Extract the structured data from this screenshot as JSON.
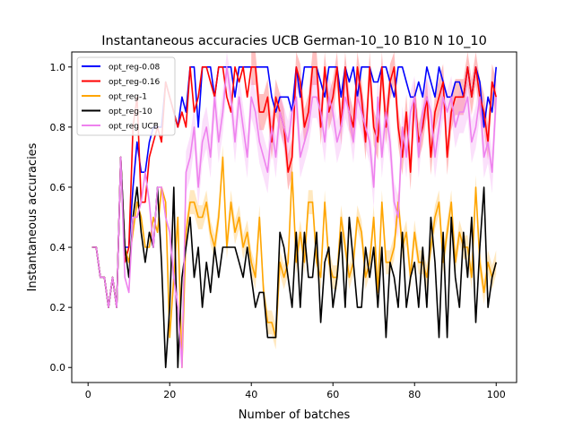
{
  "chart_data": {
    "type": "line",
    "title": "Instantaneous accuracies UCB German-10_10 B10 N 10_10",
    "xlabel": "Number of batches",
    "ylabel": "Instantaneous accuracies",
    "xlim": [
      -4,
      105
    ],
    "ylim": [
      -0.05,
      1.05
    ],
    "xticks": [
      0,
      20,
      40,
      60,
      80,
      100
    ],
    "yticks": [
      0.0,
      0.2,
      0.4,
      0.6,
      0.8,
      1.0
    ],
    "xtick_labels": [
      "0",
      "20",
      "40",
      "60",
      "80",
      "100"
    ],
    "ytick_labels": [
      "0.0",
      "0.2",
      "0.4",
      "0.6",
      "0.8",
      "1.0"
    ],
    "grid": false,
    "legend_position": "top-left",
    "x": [
      1,
      2,
      3,
      4,
      5,
      6,
      7,
      8,
      9,
      10,
      11,
      12,
      13,
      14,
      15,
      16,
      17,
      18,
      19,
      20,
      21,
      22,
      23,
      24,
      25,
      26,
      27,
      28,
      29,
      30,
      31,
      32,
      33,
      34,
      35,
      36,
      37,
      38,
      39,
      40,
      41,
      42,
      43,
      44,
      45,
      46,
      47,
      48,
      49,
      50,
      51,
      52,
      53,
      54,
      55,
      56,
      57,
      58,
      59,
      60,
      61,
      62,
      63,
      64,
      65,
      66,
      67,
      68,
      69,
      70,
      71,
      72,
      73,
      74,
      75,
      76,
      77,
      78,
      79,
      80,
      81,
      82,
      83,
      84,
      85,
      86,
      87,
      88,
      89,
      90,
      91,
      92,
      93,
      94,
      95,
      96,
      97,
      98,
      99,
      100
    ],
    "series": [
      {
        "name": "opt_reg-0.08",
        "color": "#0000ff",
        "values": [
          0.4,
          0.4,
          0.3,
          0.3,
          0.2,
          0.3,
          0.2,
          0.7,
          0.4,
          0.4,
          0.6,
          0.75,
          0.65,
          0.65,
          0.75,
          0.8,
          0.8,
          0.8,
          0.95,
          0.9,
          0.85,
          0.8,
          0.9,
          0.85,
          1.0,
          1.0,
          0.8,
          1.0,
          1.0,
          1.0,
          0.9,
          1.0,
          1.0,
          1.0,
          1.0,
          0.9,
          1.0,
          1.0,
          1.0,
          1.0,
          1.0,
          1.0,
          1.0,
          1.0,
          0.9,
          0.85,
          0.9,
          0.9,
          0.9,
          0.85,
          1.0,
          0.9,
          1.0,
          1.0,
          1.0,
          1.0,
          0.95,
          0.9,
          1.0,
          1.0,
          1.0,
          0.9,
          1.0,
          0.95,
          1.0,
          0.9,
          1.0,
          1.0,
          1.0,
          0.95,
          0.95,
          1.0,
          1.0,
          0.95,
          0.9,
          1.0,
          1.0,
          0.95,
          0.9,
          0.9,
          0.95,
          0.9,
          1.0,
          0.95,
          0.9,
          1.0,
          0.95,
          0.9,
          0.9,
          0.95,
          0.95,
          0.9,
          1.0,
          0.9,
          1.0,
          0.95,
          0.8,
          0.9,
          0.85,
          1.0
        ]
      },
      {
        "name": "opt_reg-0.16",
        "color": "#ff0000",
        "values": [
          0.4,
          0.4,
          0.3,
          0.3,
          0.2,
          0.3,
          0.2,
          0.7,
          0.35,
          0.4,
          0.8,
          0.9,
          0.55,
          0.55,
          0.7,
          0.75,
          0.8,
          0.75,
          0.95,
          0.9,
          0.85,
          0.8,
          0.85,
          0.8,
          1.0,
          0.85,
          0.9,
          1.0,
          1.0,
          0.95,
          0.9,
          1.0,
          1.0,
          0.9,
          0.85,
          1.0,
          0.95,
          1.0,
          0.9,
          1.0,
          1.0,
          0.85,
          0.85,
          0.9,
          0.75,
          0.9,
          0.85,
          0.8,
          0.65,
          0.7,
          1.0,
          0.95,
          0.8,
          0.85,
          1.0,
          1.0,
          0.8,
          1.0,
          0.85,
          0.9,
          1.0,
          0.8,
          1.0,
          0.85,
          0.8,
          1.0,
          0.9,
          0.75,
          1.0,
          0.8,
          0.75,
          1.0,
          0.8,
          0.95,
          1.0,
          0.8,
          0.7,
          0.85,
          0.65,
          0.9,
          0.75,
          0.8,
          0.9,
          0.7,
          0.85,
          0.9,
          0.95,
          0.7,
          0.85,
          0.9,
          0.9,
          0.9,
          1.0,
          0.9,
          1.0,
          0.9,
          0.85,
          0.75,
          0.95,
          0.9
        ]
      },
      {
        "name": "opt_reg-1",
        "color": "#ffa500",
        "values": [
          0.4,
          0.4,
          0.3,
          0.3,
          0.2,
          0.3,
          0.2,
          0.7,
          0.4,
          0.35,
          0.45,
          0.55,
          0.5,
          0.4,
          0.4,
          0.5,
          0.45,
          0.6,
          0.55,
          0.1,
          0.3,
          0.5,
          0.0,
          0.45,
          0.55,
          0.55,
          0.5,
          0.5,
          0.55,
          0.45,
          0.4,
          0.5,
          0.7,
          0.4,
          0.55,
          0.45,
          0.5,
          0.4,
          0.45,
          0.35,
          0.3,
          0.5,
          0.25,
          0.15,
          0.15,
          0.1,
          0.35,
          0.3,
          0.35,
          0.65,
          0.35,
          0.45,
          0.35,
          0.55,
          0.55,
          0.35,
          0.3,
          0.55,
          0.35,
          0.3,
          0.3,
          0.5,
          0.4,
          0.3,
          0.35,
          0.5,
          0.45,
          0.3,
          0.35,
          0.5,
          0.25,
          0.55,
          0.35,
          0.35,
          0.4,
          0.55,
          0.4,
          0.45,
          0.3,
          0.45,
          0.35,
          0.35,
          0.3,
          0.4,
          0.5,
          0.55,
          0.35,
          0.45,
          0.55,
          0.35,
          0.45,
          0.4,
          0.4,
          0.3,
          0.6,
          0.35,
          0.25,
          0.35,
          0.3,
          0.35
        ]
      },
      {
        "name": "opt_reg-10",
        "color": "#000000",
        "values": [
          0.4,
          0.4,
          0.3,
          0.3,
          0.2,
          0.3,
          0.2,
          0.7,
          0.4,
          0.3,
          0.5,
          0.6,
          0.45,
          0.35,
          0.45,
          0.4,
          0.6,
          0.35,
          0.0,
          0.2,
          0.6,
          0.0,
          0.3,
          0.4,
          0.5,
          0.3,
          0.4,
          0.2,
          0.35,
          0.25,
          0.4,
          0.3,
          0.4,
          0.4,
          0.4,
          0.4,
          0.35,
          0.3,
          0.4,
          0.3,
          0.2,
          0.25,
          0.25,
          0.1,
          0.1,
          0.1,
          0.45,
          0.4,
          0.3,
          0.2,
          0.45,
          0.2,
          0.45,
          0.3,
          0.3,
          0.45,
          0.15,
          0.35,
          0.4,
          0.2,
          0.3,
          0.45,
          0.2,
          0.5,
          0.35,
          0.2,
          0.2,
          0.4,
          0.3,
          0.4,
          0.2,
          0.4,
          0.1,
          0.35,
          0.3,
          0.2,
          0.45,
          0.2,
          0.3,
          0.35,
          0.2,
          0.4,
          0.2,
          0.5,
          0.35,
          0.1,
          0.45,
          0.1,
          0.5,
          0.3,
          0.2,
          0.45,
          0.3,
          0.5,
          0.15,
          0.4,
          0.6,
          0.2,
          0.3,
          0.35
        ]
      },
      {
        "name": "opt_reg UCB",
        "color": "#ee82ee",
        "values": [
          0.4,
          0.4,
          0.3,
          0.3,
          0.2,
          0.3,
          0.2,
          0.7,
          0.3,
          0.25,
          0.5,
          0.5,
          0.55,
          0.65,
          0.55,
          0.4,
          0.6,
          0.6,
          0.5,
          0.45,
          0.3,
          0.2,
          0.0,
          0.65,
          0.7,
          0.8,
          0.6,
          0.75,
          0.8,
          0.7,
          0.9,
          0.75,
          0.85,
          1.0,
          0.9,
          0.75,
          0.9,
          0.8,
          0.7,
          0.9,
          0.85,
          0.75,
          0.7,
          0.65,
          0.8,
          0.7,
          0.85,
          0.8,
          0.75,
          0.85,
          0.9,
          0.7,
          0.75,
          0.8,
          0.9,
          0.9,
          0.85,
          0.75,
          0.9,
          0.85,
          0.75,
          0.8,
          0.9,
          0.85,
          0.75,
          0.9,
          0.85,
          0.8,
          0.75,
          0.6,
          0.9,
          0.7,
          0.85,
          0.75,
          0.55,
          0.5,
          0.8,
          0.7,
          0.85,
          0.9,
          0.7,
          0.85,
          0.9,
          0.85,
          0.7,
          0.8,
          0.9,
          0.85,
          0.9,
          0.8,
          0.85,
          0.85,
          0.9,
          0.75,
          0.8,
          0.9,
          0.7,
          0.75,
          0.65,
          0.9
        ]
      }
    ],
    "bands": [
      {
        "series": "opt_reg-0.16",
        "x_range": [
          40,
          100
        ],
        "half_width": 0.06
      },
      {
        "series": "opt_reg-1",
        "x_range": [
          24,
          100
        ],
        "half_width": 0.04
      },
      {
        "series": "opt_reg UCB",
        "x_range": [
          20,
          100
        ],
        "half_width": 0.07
      }
    ]
  }
}
